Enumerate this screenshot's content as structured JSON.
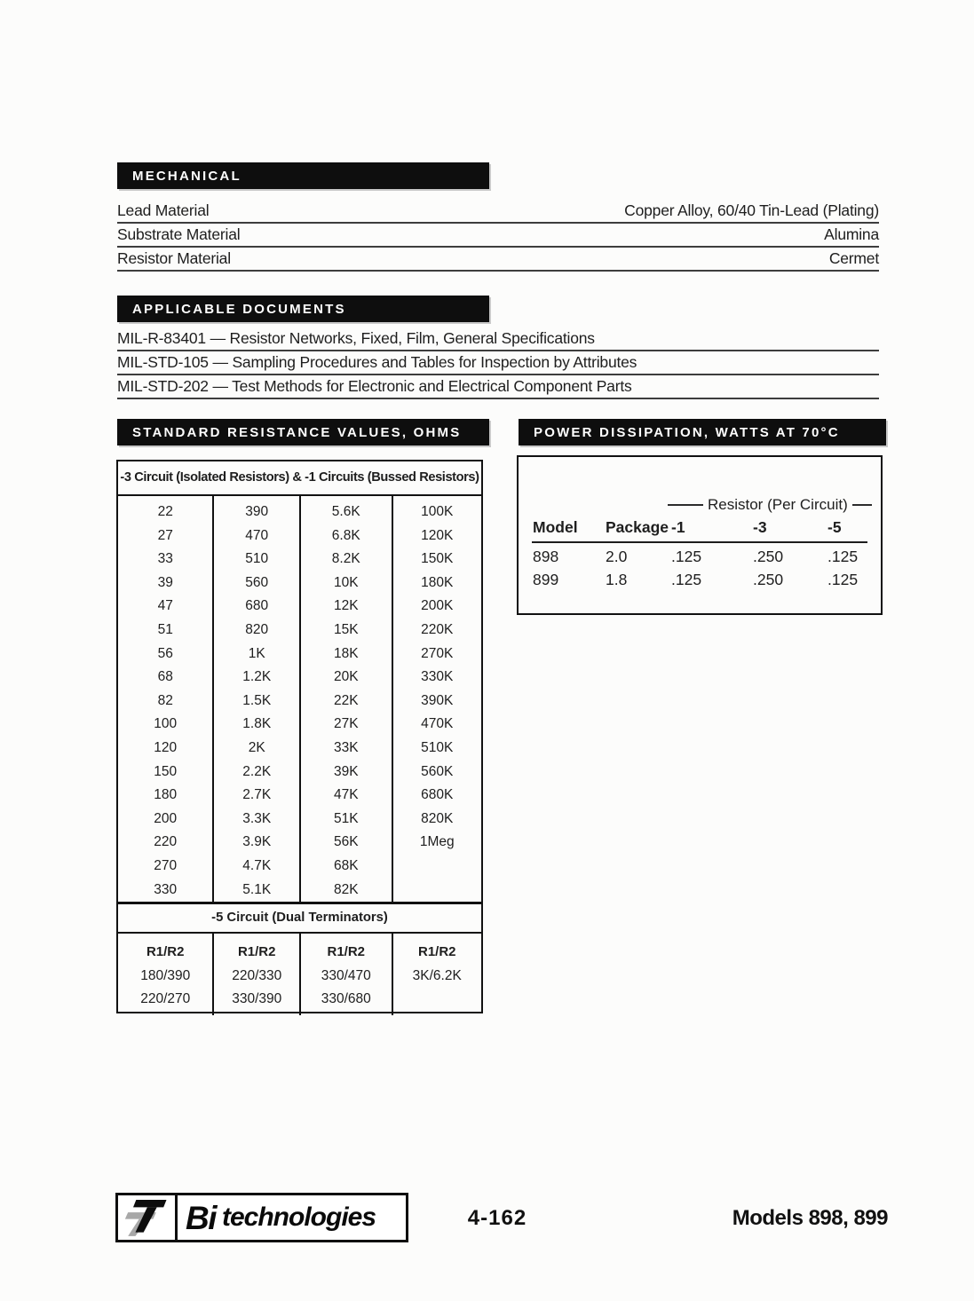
{
  "colors": {
    "bar_background": "#0e0e0e",
    "bar_text": "#ffffff",
    "body_text": "#1e1e1e",
    "table_border": "#111111",
    "logo_gray": "#a8a8a8"
  },
  "mechanical": {
    "title": "MECHANICAL",
    "rows": [
      {
        "label": "Lead Material",
        "value": "Copper Alloy, 60/40 Tin-Lead (Plating)"
      },
      {
        "label": "Substrate Material",
        "value": "Alumina"
      },
      {
        "label": "Resistor Material",
        "value": "Cermet"
      }
    ]
  },
  "applicable_documents": {
    "title": "APPLICABLE DOCUMENTS",
    "items": [
      "MIL-R-83401 — Resistor Networks, Fixed, Film, General Specifications",
      "MIL-STD-105 — Sampling Procedures and Tables for Inspection by Attributes",
      "MIL-STD-202 — Test Methods for Electronic and Electrical Component Parts"
    ]
  },
  "standard_resistance": {
    "title": "STANDARD RESISTANCE VALUES, OHMS",
    "table_header": "-3 Circuit (Isolated Resistors) & -1 Circuits (Bussed Resistors)",
    "columns": [
      [
        "22",
        "27",
        "33",
        "39",
        "47",
        "51",
        "56",
        "68",
        "82",
        "100",
        "120",
        "150",
        "180",
        "200",
        "220",
        "270",
        "330"
      ],
      [
        "390",
        "470",
        "510",
        "560",
        "680",
        "820",
        "1K",
        "1.2K",
        "1.5K",
        "1.8K",
        "2K",
        "2.2K",
        "2.7K",
        "3.3K",
        "3.9K",
        "4.7K",
        "5.1K"
      ],
      [
        "5.6K",
        "6.8K",
        "8.2K",
        "10K",
        "12K",
        "15K",
        "18K",
        "20K",
        "22K",
        "27K",
        "33K",
        "39K",
        "47K",
        "51K",
        "56K",
        "68K",
        "82K"
      ],
      [
        "100K",
        "120K",
        "150K",
        "180K",
        "200K",
        "220K",
        "270K",
        "330K",
        "390K",
        "470K",
        "510K",
        "560K",
        "680K",
        "820K",
        "1Meg"
      ]
    ],
    "dual_header": "-5 Circuit (Dual Terminators)",
    "dual_col_header": "R1/R2",
    "dual_columns": [
      [
        "180/390",
        "220/270"
      ],
      [
        "220/330",
        "330/390"
      ],
      [
        "330/470",
        "330/680"
      ],
      [
        "3K/6.2K"
      ]
    ]
  },
  "power_dissipation": {
    "title": "POWER DISSIPATION, WATTS AT 70°C",
    "span_header": "Resistor (Per Circuit)",
    "columns": [
      "Model",
      "Package",
      "-1",
      "-3",
      "-5"
    ],
    "rows": [
      [
        "898",
        "2.0",
        ".125",
        ".250",
        ".125"
      ],
      [
        "899",
        "1.8",
        ".125",
        ".250",
        ".125"
      ]
    ]
  },
  "footer": {
    "logo_bi": "Bi",
    "logo_rest": "technologies",
    "page_number": "4-162",
    "models": "Models 898, 899"
  }
}
